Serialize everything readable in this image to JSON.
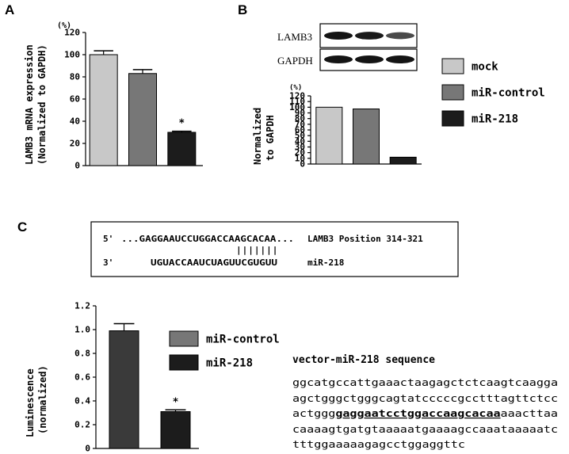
{
  "panels": {
    "a": "A",
    "b": "B",
    "c": "C"
  },
  "colors": {
    "mock": "#c8c8c8",
    "miR_control": "#777777",
    "miR_218": "#1c1c1c",
    "miR_control_c": "#3a3a3a"
  },
  "chart_data": [
    {
      "type": "bar",
      "panel": "A",
      "categories": [
        "mock",
        "miR-control",
        "miR-218"
      ],
      "values": [
        100,
        83,
        30
      ],
      "errors": [
        3.5,
        3.5,
        1
      ],
      "unit": "(%)",
      "ylabel_line1": "LAMB3 mRNA expression",
      "ylabel_line2": "(Normalized to GAPDH)",
      "ylim": [
        0,
        120
      ],
      "yticks": [
        "0",
        "20",
        "40",
        "60",
        "80",
        "100",
        "120"
      ],
      "annotations": [
        "",
        "",
        "*"
      ]
    },
    {
      "type": "bar",
      "panel": "B",
      "categories": [
        "mock",
        "miR-control",
        "miR-218"
      ],
      "values": [
        100,
        97,
        12
      ],
      "unit": "(%)",
      "ylabel_line1": "Normalized",
      "ylabel_line2": "to GAPDH",
      "ylim": [
        0,
        120
      ],
      "yticks": [
        "0",
        "10",
        "20",
        "30",
        "40",
        "50",
        "60",
        "70",
        "80",
        "90",
        "100",
        "110",
        "120"
      ]
    },
    {
      "type": "bar",
      "panel": "C",
      "categories": [
        "miR-control",
        "miR-218"
      ],
      "values": [
        0.99,
        0.31
      ],
      "errors": [
        0.06,
        0.015
      ],
      "ylabel_line1": "Luminescence",
      "ylabel_line2": "(normalized)",
      "ylim": [
        0,
        1.2
      ],
      "yticks": [
        "0",
        "0.2",
        "0.4",
        "0.6",
        "0.8",
        "1.0",
        "1.2"
      ],
      "annotations": [
        "",
        "*"
      ]
    }
  ],
  "blot": {
    "rows": [
      "LAMB3",
      "GAPDH"
    ],
    "lamb3_intensity": [
      1.0,
      0.95,
      0.55
    ],
    "gapdh_intensity": [
      1.0,
      1.0,
      1.0
    ]
  },
  "legend_b": [
    {
      "label": "mock",
      "color": "#c8c8c8"
    },
    {
      "label": "miR-control",
      "color": "#777777"
    },
    {
      "label": "miR-218",
      "color": "#1c1c1c"
    }
  ],
  "legend_c": [
    {
      "label": "miR-control",
      "color": "#777777"
    },
    {
      "label": "miR-218",
      "color": "#1c1c1c"
    }
  ],
  "alignment": {
    "line1_prefix": "5'",
    "line1_seq": "...GAGGAAUCCUGGACCAAGCACAA...",
    "line1_label": "LAMB3 Position 314-321",
    "pairing": "|||||||",
    "line2_prefix": "3'",
    "line2_seq": "UGUACCAAUCUAGUUCGUGUU",
    "line2_label": "miR-218"
  },
  "vector": {
    "title": "vector-miR-218 sequence",
    "line1": "ggcatgccattgaaactaagagctctcaagtcaagga",
    "line2": "agctgggctgggcagtatcccccgcctttagttctcc",
    "line3_a": "actggg",
    "line3_b": "gaggaatcctggaccaagcacaa",
    "line3_c": "aaacttaa",
    "line4": "caaaagtgatgtaaaaatgaaaagccaaataaaaatc",
    "line5": "tttggaaaaagagcctggaggttc"
  }
}
